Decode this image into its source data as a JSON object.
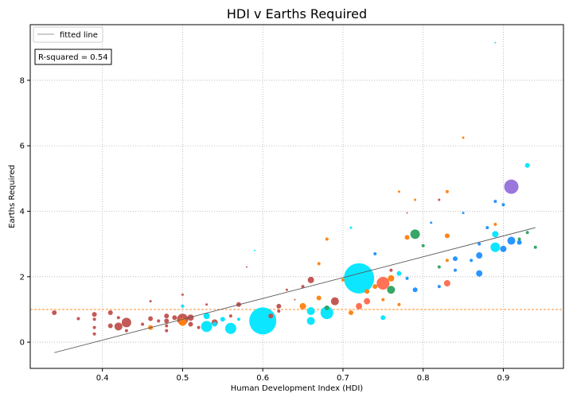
{
  "chart_data": {
    "type": "scatter",
    "title": "HDI v Earths Required",
    "xlabel": "Human Development Index (HDI)",
    "ylabel": "Earths Required",
    "xlim": [
      0.31,
      0.975
    ],
    "ylim": [
      -0.8,
      9.7
    ],
    "xticks": [
      0.4,
      0.5,
      0.6,
      0.7,
      0.8,
      0.9
    ],
    "xtick_labels": [
      "0.4",
      "0.5",
      "0.6",
      "0.7",
      "0.8",
      "0.9"
    ],
    "yticks": [
      0,
      2,
      4,
      6,
      8
    ],
    "ytick_labels": [
      "0",
      "2",
      "4",
      "6",
      "8"
    ],
    "grid": true,
    "legend_position": "top-left",
    "legend_entries": [
      "fitted line"
    ],
    "annotation": "R-squared = 0.54",
    "reference_line": {
      "y": 1.0,
      "color": "#ff7f0e",
      "style": "dashed"
    },
    "fitted_line": {
      "x": [
        0.34,
        0.94
      ],
      "y": [
        -0.32,
        3.5
      ],
      "color": "#555555"
    },
    "colors": {
      "brown": "#c0504d",
      "orange": "#ff7f0e",
      "cyan": "#00e5ff",
      "coral": "#ff6a4d",
      "blue": "#1e90ff",
      "green": "#2ca25f",
      "purple": "#9370db"
    },
    "points": [
      {
        "x": 0.34,
        "y": 0.9,
        "r": 3,
        "c": "brown"
      },
      {
        "x": 0.37,
        "y": 0.72,
        "r": 2,
        "c": "brown"
      },
      {
        "x": 0.39,
        "y": 0.85,
        "r": 3,
        "c": "brown"
      },
      {
        "x": 0.39,
        "y": 0.7,
        "r": 2,
        "c": "brown"
      },
      {
        "x": 0.39,
        "y": 0.45,
        "r": 2,
        "c": "brown"
      },
      {
        "x": 0.39,
        "y": 0.25,
        "r": 2,
        "c": "brown"
      },
      {
        "x": 0.41,
        "y": 0.9,
        "r": 3,
        "c": "brown"
      },
      {
        "x": 0.41,
        "y": 0.5,
        "r": 3,
        "c": "brown"
      },
      {
        "x": 0.42,
        "y": 0.48,
        "r": 5,
        "c": "brown"
      },
      {
        "x": 0.42,
        "y": 0.75,
        "r": 2,
        "c": "brown"
      },
      {
        "x": 0.43,
        "y": 0.6,
        "r": 6,
        "c": "brown"
      },
      {
        "x": 0.43,
        "y": 0.35,
        "r": 2,
        "c": "brown"
      },
      {
        "x": 0.45,
        "y": 0.55,
        "r": 2,
        "c": "brown"
      },
      {
        "x": 0.46,
        "y": 0.72,
        "r": 3,
        "c": "brown"
      },
      {
        "x": 0.46,
        "y": 1.25,
        "r": 1.5,
        "c": "brown"
      },
      {
        "x": 0.46,
        "y": 0.45,
        "r": 3,
        "c": "orange"
      },
      {
        "x": 0.47,
        "y": 0.65,
        "r": 2,
        "c": "brown"
      },
      {
        "x": 0.48,
        "y": 0.8,
        "r": 3,
        "c": "brown"
      },
      {
        "x": 0.48,
        "y": 0.65,
        "r": 3,
        "c": "brown"
      },
      {
        "x": 0.48,
        "y": 0.5,
        "r": 2,
        "c": "brown"
      },
      {
        "x": 0.48,
        "y": 0.35,
        "r": 2,
        "c": "brown"
      },
      {
        "x": 0.49,
        "y": 0.75,
        "r": 3,
        "c": "brown"
      },
      {
        "x": 0.5,
        "y": 0.7,
        "r": 7,
        "c": "brown"
      },
      {
        "x": 0.5,
        "y": 0.62,
        "r": 5,
        "c": "orange"
      },
      {
        "x": 0.5,
        "y": 1.45,
        "r": 1.5,
        "c": "brown"
      },
      {
        "x": 0.5,
        "y": 1.1,
        "r": 2,
        "c": "cyan"
      },
      {
        "x": 0.51,
        "y": 0.75,
        "r": 4,
        "c": "brown"
      },
      {
        "x": 0.51,
        "y": 0.55,
        "r": 3,
        "c": "brown"
      },
      {
        "x": 0.52,
        "y": 0.45,
        "r": 2,
        "c": "brown"
      },
      {
        "x": 0.53,
        "y": 0.48,
        "r": 7,
        "c": "cyan"
      },
      {
        "x": 0.53,
        "y": 1.15,
        "r": 1.5,
        "c": "brown"
      },
      {
        "x": 0.53,
        "y": 0.8,
        "r": 4,
        "c": "cyan"
      },
      {
        "x": 0.54,
        "y": 0.6,
        "r": 4,
        "c": "brown"
      },
      {
        "x": 0.54,
        "y": 0.55,
        "r": 3,
        "c": "cyan"
      },
      {
        "x": 0.55,
        "y": 0.7,
        "r": 3,
        "c": "cyan"
      },
      {
        "x": 0.56,
        "y": 0.42,
        "r": 7,
        "c": "cyan"
      },
      {
        "x": 0.56,
        "y": 0.8,
        "r": 2,
        "c": "brown"
      },
      {
        "x": 0.57,
        "y": 1.15,
        "r": 3,
        "c": "brown"
      },
      {
        "x": 0.57,
        "y": 0.7,
        "r": 2,
        "c": "cyan"
      },
      {
        "x": 0.58,
        "y": 2.3,
        "r": 1,
        "c": "brown"
      },
      {
        "x": 0.59,
        "y": 2.8,
        "r": 1,
        "c": "cyan"
      },
      {
        "x": 0.6,
        "y": 0.65,
        "r": 17,
        "c": "cyan"
      },
      {
        "x": 0.61,
        "y": 0.8,
        "r": 3,
        "c": "brown"
      },
      {
        "x": 0.62,
        "y": 1.1,
        "r": 3,
        "c": "brown"
      },
      {
        "x": 0.62,
        "y": 0.95,
        "r": 2,
        "c": "brown"
      },
      {
        "x": 0.63,
        "y": 1.6,
        "r": 1.5,
        "c": "brown"
      },
      {
        "x": 0.64,
        "y": 1.3,
        "r": 1,
        "c": "brown"
      },
      {
        "x": 0.65,
        "y": 1.1,
        "r": 4,
        "c": "orange"
      },
      {
        "x": 0.65,
        "y": 1.7,
        "r": 2,
        "c": "brown"
      },
      {
        "x": 0.66,
        "y": 1.9,
        "r": 4,
        "c": "brown"
      },
      {
        "x": 0.66,
        "y": 0.95,
        "r": 5,
        "c": "cyan"
      },
      {
        "x": 0.66,
        "y": 0.65,
        "r": 5,
        "c": "cyan"
      },
      {
        "x": 0.67,
        "y": 2.4,
        "r": 2,
        "c": "orange"
      },
      {
        "x": 0.67,
        "y": 1.35,
        "r": 3,
        "c": "orange"
      },
      {
        "x": 0.68,
        "y": 0.9,
        "r": 8,
        "c": "cyan"
      },
      {
        "x": 0.68,
        "y": 3.15,
        "r": 2,
        "c": "orange"
      },
      {
        "x": 0.68,
        "y": 1.05,
        "r": 3,
        "c": "green"
      },
      {
        "x": 0.69,
        "y": 1.25,
        "r": 5,
        "c": "brown"
      },
      {
        "x": 0.7,
        "y": 1.9,
        "r": 2,
        "c": "orange"
      },
      {
        "x": 0.71,
        "y": 3.5,
        "r": 1.5,
        "c": "cyan"
      },
      {
        "x": 0.71,
        "y": 0.9,
        "r": 3,
        "c": "orange"
      },
      {
        "x": 0.72,
        "y": 1.95,
        "r": 19,
        "c": "cyan"
      },
      {
        "x": 0.72,
        "y": 1.1,
        "r": 4,
        "c": "coral"
      },
      {
        "x": 0.73,
        "y": 1.25,
        "r": 4,
        "c": "coral"
      },
      {
        "x": 0.73,
        "y": 1.55,
        "r": 3,
        "c": "orange"
      },
      {
        "x": 0.74,
        "y": 1.7,
        "r": 3,
        "c": "orange"
      },
      {
        "x": 0.74,
        "y": 2.7,
        "r": 2,
        "c": "blue"
      },
      {
        "x": 0.75,
        "y": 1.8,
        "r": 8,
        "c": "coral"
      },
      {
        "x": 0.75,
        "y": 0.75,
        "r": 3,
        "c": "cyan"
      },
      {
        "x": 0.75,
        "y": 1.3,
        "r": 2,
        "c": "orange"
      },
      {
        "x": 0.76,
        "y": 1.6,
        "r": 5,
        "c": "green"
      },
      {
        "x": 0.76,
        "y": 1.95,
        "r": 4,
        "c": "orange"
      },
      {
        "x": 0.76,
        "y": 2.2,
        "r": 2,
        "c": "brown"
      },
      {
        "x": 0.77,
        "y": 2.1,
        "r": 3,
        "c": "cyan"
      },
      {
        "x": 0.77,
        "y": 1.15,
        "r": 2,
        "c": "orange"
      },
      {
        "x": 0.77,
        "y": 4.6,
        "r": 1.5,
        "c": "orange"
      },
      {
        "x": 0.78,
        "y": 3.2,
        "r": 3,
        "c": "orange"
      },
      {
        "x": 0.78,
        "y": 1.95,
        "r": 2,
        "c": "blue"
      },
      {
        "x": 0.78,
        "y": 3.95,
        "r": 1,
        "c": "brown"
      },
      {
        "x": 0.79,
        "y": 3.3,
        "r": 6,
        "c": "green"
      },
      {
        "x": 0.79,
        "y": 1.6,
        "r": 3,
        "c": "blue"
      },
      {
        "x": 0.79,
        "y": 4.35,
        "r": 1.5,
        "c": "orange"
      },
      {
        "x": 0.8,
        "y": 2.95,
        "r": 2,
        "c": "green"
      },
      {
        "x": 0.81,
        "y": 3.65,
        "r": 1.5,
        "c": "blue"
      },
      {
        "x": 0.82,
        "y": 1.7,
        "r": 2,
        "c": "blue"
      },
      {
        "x": 0.82,
        "y": 2.3,
        "r": 2,
        "c": "green"
      },
      {
        "x": 0.82,
        "y": 4.35,
        "r": 1.5,
        "c": "brown"
      },
      {
        "x": 0.83,
        "y": 1.8,
        "r": 4,
        "c": "coral"
      },
      {
        "x": 0.83,
        "y": 3.25,
        "r": 3,
        "c": "orange"
      },
      {
        "x": 0.83,
        "y": 2.5,
        "r": 2,
        "c": "orange"
      },
      {
        "x": 0.83,
        "y": 4.6,
        "r": 2,
        "c": "orange"
      },
      {
        "x": 0.84,
        "y": 2.55,
        "r": 3,
        "c": "blue"
      },
      {
        "x": 0.84,
        "y": 2.2,
        "r": 2,
        "c": "blue"
      },
      {
        "x": 0.85,
        "y": 3.95,
        "r": 1.5,
        "c": "blue"
      },
      {
        "x": 0.85,
        "y": 6.25,
        "r": 1.5,
        "c": "orange"
      },
      {
        "x": 0.86,
        "y": 2.5,
        "r": 2,
        "c": "blue"
      },
      {
        "x": 0.87,
        "y": 2.65,
        "r": 4,
        "c": "blue"
      },
      {
        "x": 0.87,
        "y": 2.1,
        "r": 4,
        "c": "blue"
      },
      {
        "x": 0.87,
        "y": 3.0,
        "r": 2,
        "c": "blue"
      },
      {
        "x": 0.88,
        "y": 3.5,
        "r": 2,
        "c": "blue"
      },
      {
        "x": 0.89,
        "y": 2.9,
        "r": 6,
        "c": "cyan"
      },
      {
        "x": 0.89,
        "y": 3.3,
        "r": 4,
        "c": "cyan"
      },
      {
        "x": 0.89,
        "y": 4.3,
        "r": 2,
        "c": "blue"
      },
      {
        "x": 0.89,
        "y": 3.6,
        "r": 2,
        "c": "orange"
      },
      {
        "x": 0.89,
        "y": 9.15,
        "r": 1,
        "c": "cyan"
      },
      {
        "x": 0.9,
        "y": 2.85,
        "r": 4,
        "c": "blue"
      },
      {
        "x": 0.9,
        "y": 4.2,
        "r": 2,
        "c": "blue"
      },
      {
        "x": 0.91,
        "y": 4.75,
        "r": 9,
        "c": "purple"
      },
      {
        "x": 0.91,
        "y": 3.1,
        "r": 5,
        "c": "blue"
      },
      {
        "x": 0.92,
        "y": 3.05,
        "r": 3,
        "c": "blue"
      },
      {
        "x": 0.92,
        "y": 3.15,
        "r": 2,
        "c": "green"
      },
      {
        "x": 0.93,
        "y": 5.4,
        "r": 3,
        "c": "cyan"
      },
      {
        "x": 0.93,
        "y": 3.35,
        "r": 2,
        "c": "green"
      },
      {
        "x": 0.94,
        "y": 2.9,
        "r": 2,
        "c": "green"
      }
    ]
  }
}
